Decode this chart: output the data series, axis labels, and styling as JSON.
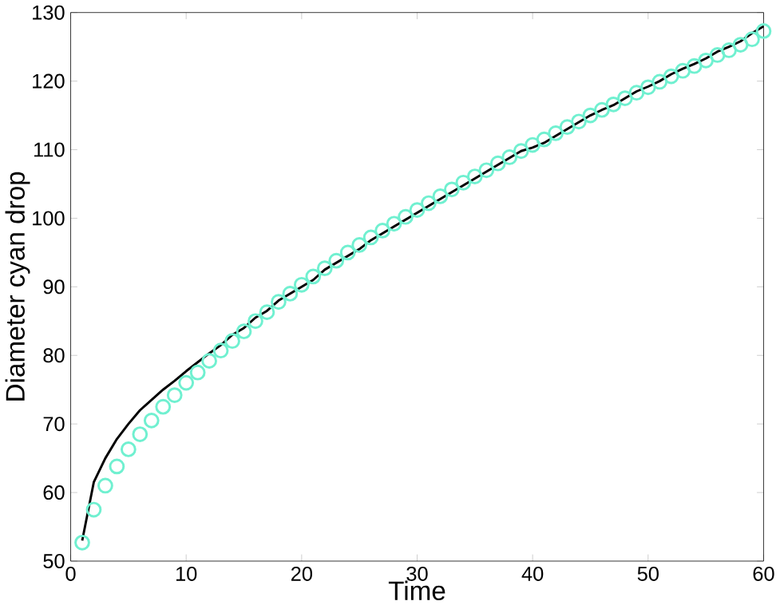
{
  "chart_data": {
    "type": "line",
    "xlabel": "Time",
    "ylabel": "Diameter cyan drop",
    "xlim": [
      0,
      60
    ],
    "ylim": [
      50,
      130
    ],
    "xticks": [
      0,
      10,
      20,
      30,
      40,
      50,
      60
    ],
    "yticks": [
      50,
      60,
      70,
      80,
      90,
      100,
      110,
      120,
      130
    ],
    "series": [
      {
        "type": "scatter",
        "marker": "circle",
        "color": "#70f0d0",
        "x": [
          1,
          2,
          3,
          4,
          5,
          6,
          7,
          8,
          9,
          10,
          11,
          12,
          13,
          14,
          15,
          16,
          17,
          18,
          19,
          20,
          21,
          22,
          23,
          24,
          25,
          26,
          27,
          28,
          29,
          30,
          31,
          32,
          33,
          34,
          35,
          36,
          37,
          38,
          39,
          40,
          41,
          42,
          43,
          44,
          45,
          46,
          47,
          48,
          49,
          50,
          51,
          52,
          53,
          54,
          55,
          56,
          57,
          58,
          59,
          60
        ],
        "values": [
          52.7,
          57.5,
          61,
          63.8,
          66.3,
          68.5,
          70.5,
          72.5,
          74.2,
          76,
          77.5,
          79.2,
          80.7,
          82.1,
          83.5,
          85,
          86.3,
          87.8,
          89,
          90.3,
          91.5,
          92.7,
          93.8,
          95,
          96.1,
          97.2,
          98.2,
          99.2,
          100.2,
          101.2,
          102.2,
          103.2,
          104.2,
          105.2,
          106.1,
          107,
          108,
          108.9,
          109.8,
          110.7,
          111.5,
          112.4,
          113.3,
          114.1,
          115,
          115.8,
          116.6,
          117.5,
          118.3,
          119.1,
          119.9,
          120.7,
          121.5,
          122.2,
          123,
          123.8,
          124.5,
          125.3,
          126.1,
          127.3
        ]
      },
      {
        "marker": "none",
        "line_style": "solid",
        "color": "#000000",
        "x": [
          1,
          2,
          3,
          4,
          5,
          6,
          7,
          8,
          9,
          10,
          11,
          12,
          13,
          14,
          15,
          16,
          17,
          18,
          19,
          20,
          21,
          22,
          23,
          24,
          25,
          26,
          27,
          28,
          29,
          30,
          31,
          32,
          33,
          34,
          35,
          36,
          37,
          38,
          39,
          40,
          41,
          42,
          43,
          44,
          45,
          46,
          47,
          48,
          49,
          50,
          51,
          52,
          53,
          54,
          55,
          56,
          57,
          58,
          59,
          60
        ],
        "values": [
          53,
          61.5,
          65,
          67.8,
          70,
          72,
          73.5,
          75,
          76.3,
          77.7,
          79,
          80.3,
          81.5,
          83,
          84,
          85.5,
          86.5,
          88,
          89,
          90,
          91,
          92.5,
          93.5,
          94.5,
          95.5,
          96.8,
          97.8,
          98.8,
          99.8,
          100.8,
          101.8,
          102.8,
          103.8,
          104.8,
          105.8,
          106.8,
          107.8,
          108.8,
          109.8,
          110.3,
          111,
          112,
          113,
          114,
          115,
          115.8,
          116.5,
          117.5,
          118.5,
          119.2,
          120,
          121,
          121.8,
          122.5,
          123.3,
          124.3,
          125,
          125.8,
          127,
          128
        ]
      }
    ]
  }
}
